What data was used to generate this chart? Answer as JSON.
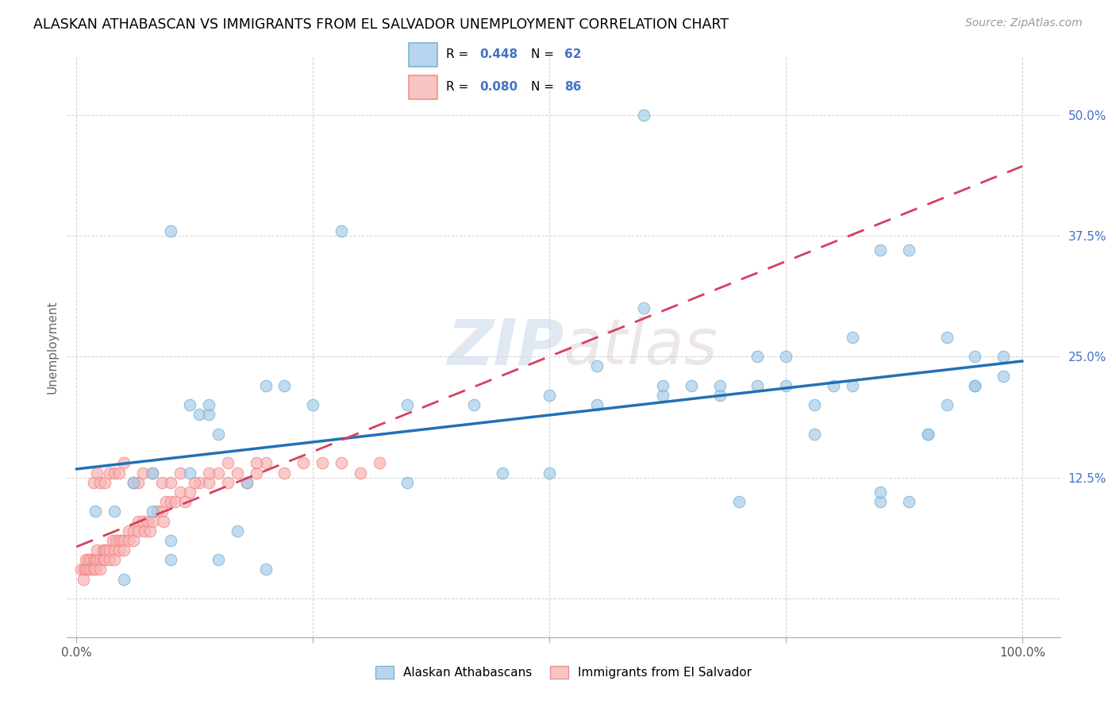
{
  "title": "ALASKAN ATHABASCAN VS IMMIGRANTS FROM EL SALVADOR UNEMPLOYMENT CORRELATION CHART",
  "source": "Source: ZipAtlas.com",
  "ylabel": "Unemployment",
  "xlim": [
    -0.01,
    1.04
  ],
  "ylim": [
    -0.04,
    0.56
  ],
  "xticks": [
    0.0,
    0.25,
    0.5,
    0.75,
    1.0
  ],
  "xticklabels_show": [
    "0.0%",
    "",
    "",
    "",
    "100.0%"
  ],
  "xtick_minor": [
    0.25,
    0.5,
    0.75
  ],
  "yticks": [
    0.0,
    0.125,
    0.25,
    0.375,
    0.5
  ],
  "yticklabels": [
    "",
    "12.5%",
    "25.0%",
    "37.5%",
    "50.0%"
  ],
  "legend1_R": "0.448",
  "legend1_N": "62",
  "legend2_R": "0.080",
  "legend2_N": "86",
  "legend_label1": "Alaskan Athabascans",
  "legend_label2": "Immigrants from El Salvador",
  "blue_color": "#a8cce8",
  "blue_edge": "#6baed6",
  "pink_color": "#f8b4b4",
  "pink_edge": "#f08080",
  "trend_blue": "#2171b5",
  "trend_pink": "#d44060",
  "watermark_zip": "ZIP",
  "watermark_atlas": "atlas",
  "blue_x": [
    0.02,
    0.04,
    0.06,
    0.08,
    0.1,
    0.12,
    0.13,
    0.14,
    0.15,
    0.17,
    0.2,
    0.1,
    0.14,
    0.22,
    0.28,
    0.35,
    0.42,
    0.5,
    0.55,
    0.6,
    0.62,
    0.65,
    0.68,
    0.72,
    0.75,
    0.78,
    0.8,
    0.82,
    0.85,
    0.88,
    0.9,
    0.92,
    0.95,
    0.98,
    0.5,
    0.55,
    0.62,
    0.68,
    0.72,
    0.75,
    0.78,
    0.82,
    0.85,
    0.88,
    0.9,
    0.92,
    0.95,
    0.98,
    0.05,
    0.1,
    0.15,
    0.2,
    0.08,
    0.12,
    0.18,
    0.25,
    0.35,
    0.45,
    0.6,
    0.7,
    0.85,
    0.95
  ],
  "blue_y": [
    0.09,
    0.09,
    0.12,
    0.13,
    0.06,
    0.2,
    0.19,
    0.19,
    0.17,
    0.07,
    0.22,
    0.38,
    0.2,
    0.22,
    0.38,
    0.2,
    0.2,
    0.13,
    0.2,
    0.3,
    0.21,
    0.22,
    0.21,
    0.22,
    0.25,
    0.2,
    0.22,
    0.27,
    0.36,
    0.36,
    0.17,
    0.2,
    0.25,
    0.25,
    0.21,
    0.24,
    0.22,
    0.22,
    0.25,
    0.22,
    0.17,
    0.22,
    0.1,
    0.1,
    0.17,
    0.27,
    0.22,
    0.23,
    0.02,
    0.04,
    0.04,
    0.03,
    0.09,
    0.13,
    0.12,
    0.2,
    0.12,
    0.13,
    0.5,
    0.1,
    0.11,
    0.22
  ],
  "pink_x": [
    0.005,
    0.007,
    0.008,
    0.01,
    0.01,
    0.012,
    0.012,
    0.015,
    0.015,
    0.018,
    0.018,
    0.02,
    0.02,
    0.022,
    0.022,
    0.025,
    0.025,
    0.028,
    0.028,
    0.03,
    0.03,
    0.032,
    0.035,
    0.035,
    0.038,
    0.04,
    0.04,
    0.042,
    0.045,
    0.045,
    0.048,
    0.05,
    0.05,
    0.055,
    0.055,
    0.06,
    0.06,
    0.065,
    0.065,
    0.07,
    0.072,
    0.075,
    0.078,
    0.08,
    0.085,
    0.09,
    0.092,
    0.095,
    0.1,
    0.105,
    0.11,
    0.115,
    0.12,
    0.13,
    0.14,
    0.15,
    0.16,
    0.17,
    0.18,
    0.19,
    0.2,
    0.22,
    0.24,
    0.26,
    0.28,
    0.3,
    0.32,
    0.018,
    0.022,
    0.025,
    0.03,
    0.035,
    0.04,
    0.045,
    0.05,
    0.06,
    0.065,
    0.07,
    0.08,
    0.09,
    0.1,
    0.11,
    0.125,
    0.14,
    0.16,
    0.19
  ],
  "pink_y": [
    0.03,
    0.02,
    0.03,
    0.03,
    0.04,
    0.03,
    0.04,
    0.04,
    0.03,
    0.04,
    0.03,
    0.04,
    0.03,
    0.04,
    0.05,
    0.04,
    0.03,
    0.05,
    0.04,
    0.05,
    0.04,
    0.05,
    0.05,
    0.04,
    0.06,
    0.05,
    0.04,
    0.06,
    0.06,
    0.05,
    0.06,
    0.06,
    0.05,
    0.07,
    0.06,
    0.07,
    0.06,
    0.08,
    0.07,
    0.08,
    0.07,
    0.08,
    0.07,
    0.08,
    0.09,
    0.09,
    0.08,
    0.1,
    0.1,
    0.1,
    0.11,
    0.1,
    0.11,
    0.12,
    0.12,
    0.13,
    0.12,
    0.13,
    0.12,
    0.13,
    0.14,
    0.13,
    0.14,
    0.14,
    0.14,
    0.13,
    0.14,
    0.12,
    0.13,
    0.12,
    0.12,
    0.13,
    0.13,
    0.13,
    0.14,
    0.12,
    0.12,
    0.13,
    0.13,
    0.12,
    0.12,
    0.13,
    0.12,
    0.13,
    0.14,
    0.14
  ]
}
